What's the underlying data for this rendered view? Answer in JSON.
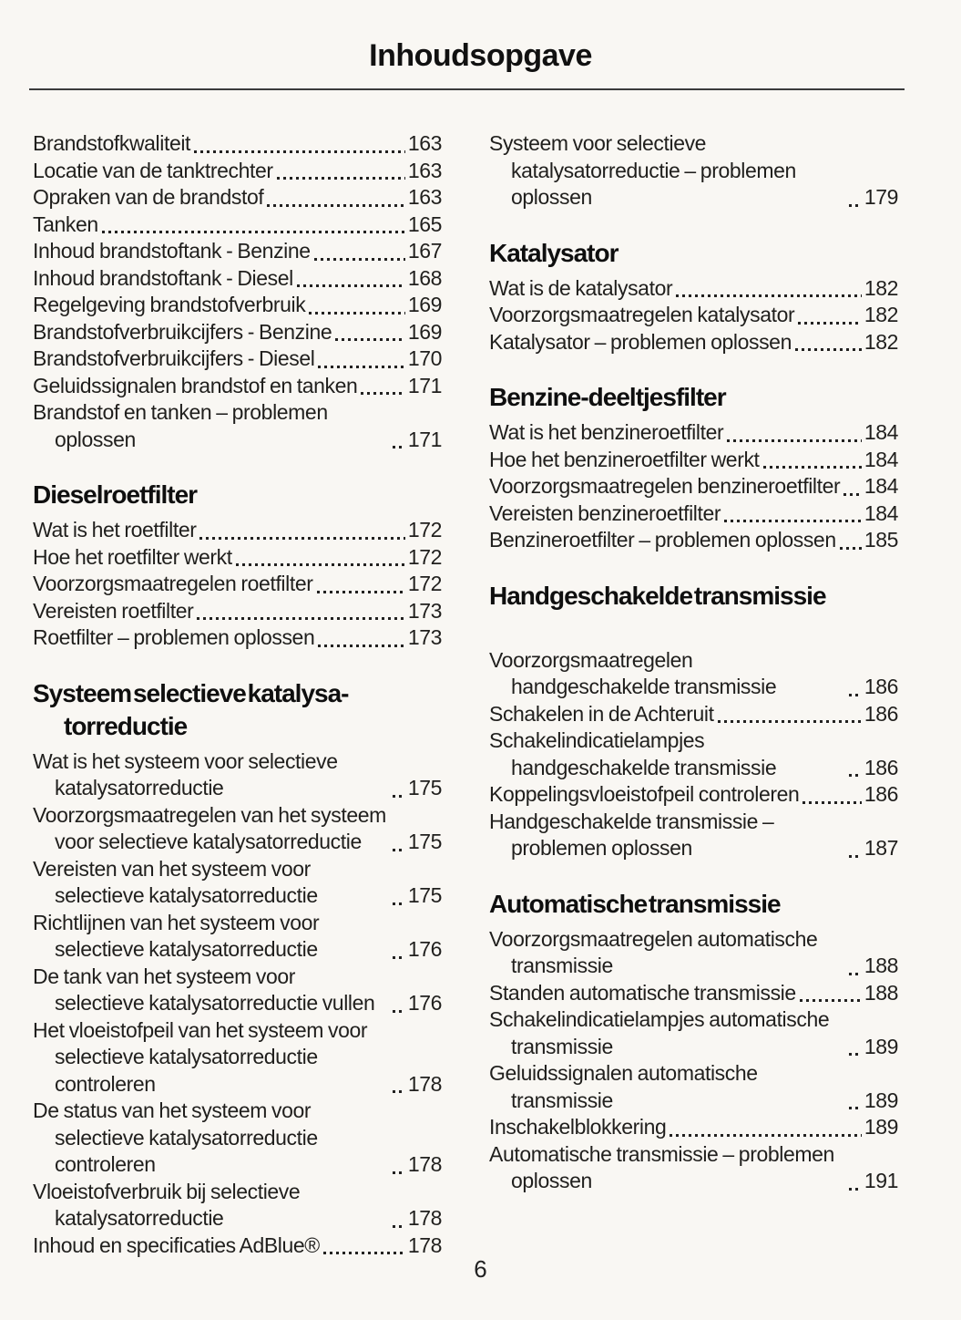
{
  "page": {
    "title": "Inhoudsopgave",
    "number": "6"
  },
  "columns": [
    {
      "sections": [
        {
          "heading": null,
          "entries": [
            {
              "title": "Brandstofkwaliteit",
              "page": "163"
            },
            {
              "title": "Locatie van de tanktrechter",
              "page": "163"
            },
            {
              "title": "Opraken van de brandstof",
              "page": "163"
            },
            {
              "title": "Tanken",
              "page": "165"
            },
            {
              "title": "Inhoud brandstoftank - Benzine",
              "page": "167"
            },
            {
              "title": "Inhoud brandstoftank - Diesel",
              "page": "168"
            },
            {
              "title": "Regelgeving brandstofverbruik",
              "page": "169"
            },
            {
              "title": "Brandstofverbruikcijfers - Benzine",
              "page": "169"
            },
            {
              "title": "Brandstofverbruikcijfers - Diesel",
              "page": "170"
            },
            {
              "title": "Geluidssignalen brandstof en tanken",
              "page": "171"
            },
            {
              "title": "Brandstof en tanken – problemen oplossen",
              "page": "171"
            }
          ]
        },
        {
          "heading": "Dieselroetfilter",
          "entries": [
            {
              "title": "Wat is het roetfilter",
              "page": "172"
            },
            {
              "title": "Hoe het roetfilter werkt",
              "page": "172"
            },
            {
              "title": "Voorzorgsmaatregelen roetfilter",
              "page": "172"
            },
            {
              "title": "Vereisten roetfilter",
              "page": "173"
            },
            {
              "title": "Roetfilter – problemen oplossen",
              "page": "173"
            }
          ]
        },
        {
          "heading": "Systeem selectieve katalysa-\ntorreductie",
          "entries": [
            {
              "title": "Wat is het systeem voor selectieve katalysatorreductie",
              "page": "175"
            },
            {
              "title": "Voorzorgsmaatregelen van het systeem voor selectieve katalysatorreductie",
              "page": "175"
            },
            {
              "title": "Vereisten van het systeem voor selectieve katalysatorreductie",
              "page": "175"
            },
            {
              "title": "Richtlijnen van het systeem voor selectieve katalysatorreductie",
              "page": "176"
            },
            {
              "title": "De tank van het systeem voor selectieve katalysatorreductie vullen",
              "page": "176"
            },
            {
              "title": "Het vloeistofpeil van het systeem voor selectieve katalysatorreductie controleren",
              "page": "178"
            },
            {
              "title": "De status van het systeem voor selectieve katalysatorreductie controleren",
              "page": "178"
            },
            {
              "title": "Vloeistofverbruik bij selectieve katalysatorreductie",
              "page": "178"
            },
            {
              "title": "Inhoud en specificaties AdBlue®",
              "page": "178"
            }
          ]
        }
      ]
    },
    {
      "sections": [
        {
          "heading": null,
          "entries": [
            {
              "title": "Systeem voor selectieve katalysatorreductie – problemen oplossen",
              "page": "179"
            }
          ]
        },
        {
          "heading": "Katalysator",
          "entries": [
            {
              "title": "Wat is de katalysator",
              "page": "182"
            },
            {
              "title": "Voorzorgsmaatregelen katalysator",
              "page": "182"
            },
            {
              "title": "Katalysator – problemen oplossen",
              "page": "182"
            }
          ]
        },
        {
          "heading": "Benzine-deeltjesfilter",
          "entries": [
            {
              "title": "Wat is het benzineroetfilter",
              "page": "184"
            },
            {
              "title": "Hoe het benzineroetfilter werkt",
              "page": "184"
            },
            {
              "title": "Voorzorgsmaatregelen benzineroetfilter",
              "page": "184"
            },
            {
              "title": "Vereisten benzineroetfilter",
              "page": "184"
            },
            {
              "title": "Benzineroetfilter – problemen oplossen",
              "page": "185"
            }
          ]
        },
        {
          "heading": "Handgeschakelde transmissie",
          "extra_space_after_heading": true,
          "entries": [
            {
              "title": "Voorzorgsmaatregelen handgeschakelde transmissie",
              "page": "186"
            },
            {
              "title": "Schakelen in de Achteruit",
              "page": "186"
            },
            {
              "title": "Schakelindicatielampjes handgeschakelde transmissie",
              "page": "186"
            },
            {
              "title": "Koppelingsvloeistofpeil controleren",
              "page": "186"
            },
            {
              "title": "Handgeschakelde transmissie – problemen oplossen",
              "page": "187"
            }
          ]
        },
        {
          "heading": "Automatische transmissie",
          "entries": [
            {
              "title": "Voorzorgsmaatregelen automatische transmissie",
              "page": "188"
            },
            {
              "title": "Standen automatische transmissie",
              "page": "188"
            },
            {
              "title": "Schakelindicatielampjes automatische transmissie",
              "page": "189"
            },
            {
              "title": "Geluidssignalen automatische transmissie",
              "page": "189"
            },
            {
              "title": "Inschakelblokkering",
              "page": "189"
            },
            {
              "title": "Automatische transmissie – problemen oplossen",
              "page": "191"
            }
          ]
        }
      ]
    }
  ]
}
